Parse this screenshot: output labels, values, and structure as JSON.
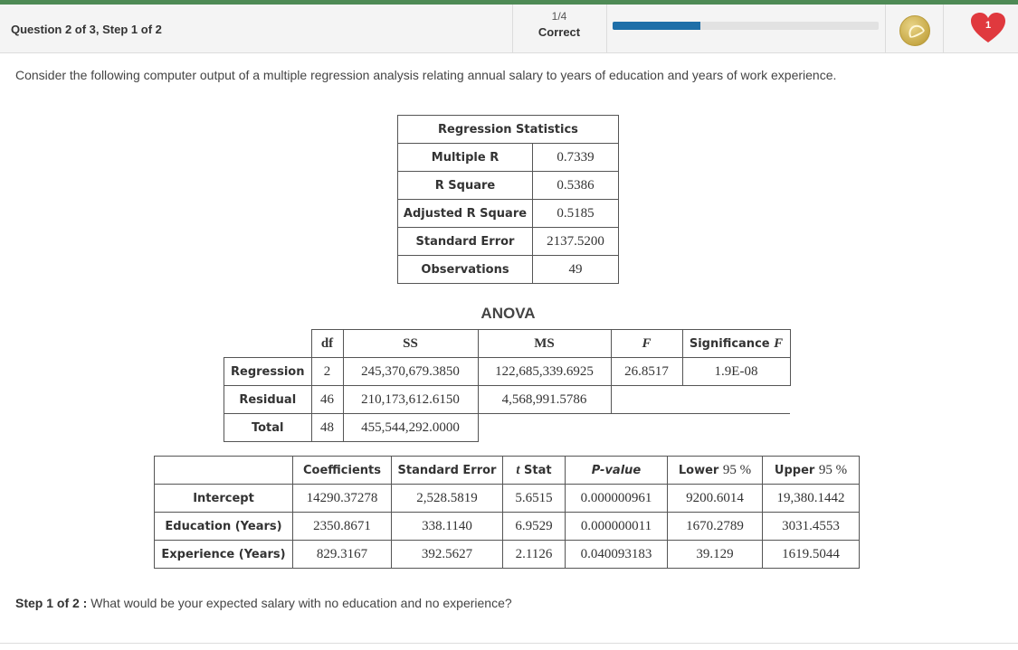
{
  "header": {
    "title": "Question 2 of 3, Step 1 of 2",
    "progress_fraction": "1/4",
    "progress_status": "Correct",
    "progress_value": 0.33,
    "hearts_count": "1"
  },
  "prompt": "Consider the following computer output of a multiple regression analysis relating annual salary to years of education and years of work experience.",
  "regression_statistics": {
    "title": "Regression Statistics",
    "rows": [
      {
        "label": "Multiple R",
        "value": "0.7339"
      },
      {
        "label": "R Square",
        "value": "0.5386"
      },
      {
        "label": "Adjusted R Square",
        "value": "0.5185"
      },
      {
        "label": "Standard Error",
        "value": "2137.5200"
      },
      {
        "label": "Observations",
        "value": "49"
      }
    ]
  },
  "anova": {
    "title": "ANOVA",
    "headers": {
      "df": "df",
      "ss": "SS",
      "ms": "MS",
      "f": "F",
      "sig_prefix": "Significance ",
      "sig_italic": "F"
    },
    "rows": [
      {
        "label": "Regression",
        "df": "2",
        "ss": "245,370,679.3850",
        "ms": "122,685,339.6925",
        "f": "26.8517",
        "sig": "1.9E-08"
      },
      {
        "label": "Residual",
        "df": "46",
        "ss": "210,173,612.6150",
        "ms": "4,568,991.5786"
      },
      {
        "label": "Total",
        "df": "48",
        "ss": "455,544,292.0000"
      }
    ]
  },
  "coefficients": {
    "headers": {
      "coef": "Coefficients",
      "se": "Standard Error",
      "t_italic": "t",
      "t_rest": " Stat",
      "p": "P-value",
      "lower_prefix": "Lower ",
      "lower_num": "95 %",
      "upper_prefix": "Upper ",
      "upper_num": "95 %"
    },
    "rows": [
      {
        "label": "Intercept",
        "coef": "14290.37278",
        "se": "2,528.5819",
        "t": "5.6515",
        "p": "0.000000961",
        "lower": "9200.6014",
        "upper": "19,380.1442"
      },
      {
        "label": "Education (Years)",
        "coef": "2350.8671",
        "se": "338.1140",
        "t": "6.9529",
        "p": "0.000000011",
        "lower": "1670.2789",
        "upper": "3031.4553"
      },
      {
        "label": "Experience (Years)",
        "coef": "829.3167",
        "se": "392.5627",
        "t": "2.1126",
        "p": "0.040093183",
        "lower": "39.129",
        "upper": "1619.5044"
      }
    ]
  },
  "step": {
    "label": "Step 1 of 2 :",
    "question": "What would be your expected salary with no education and no experience?"
  },
  "colors": {
    "accent": "#4e8a55",
    "progress": "#1f6fa8",
    "heart": "#e0393e"
  },
  "icons": {
    "coin": "coin-icon",
    "heart": "heart-icon"
  }
}
